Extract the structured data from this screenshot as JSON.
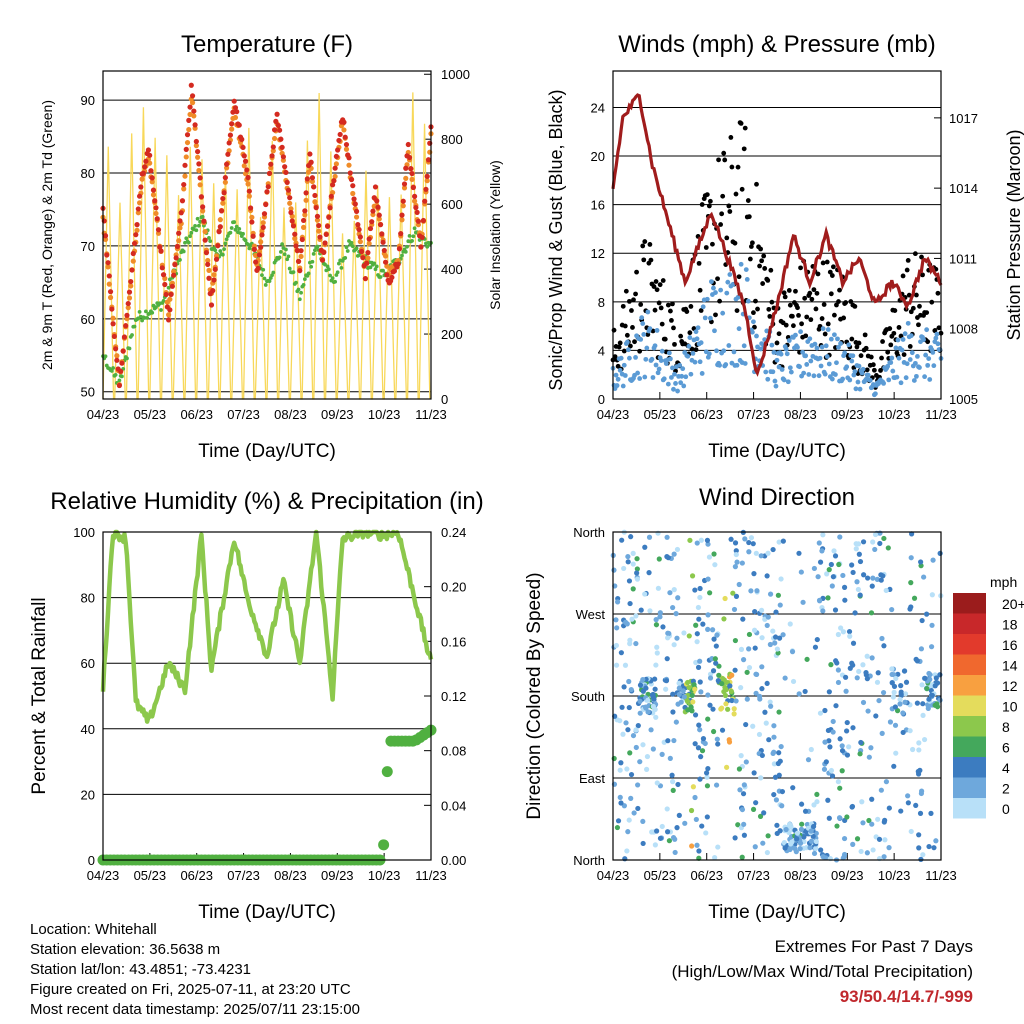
{
  "chart_data": [
    {
      "type": "line",
      "title": "Temperature (F)",
      "xlabel": "Time (Day/UTC)",
      "ylabel": "2m & 9m T (Red, Orange) & 2m Td (Green)",
      "ylabel_right": "Solar Insolation (Yellow)",
      "x_ticks": [
        "04/23",
        "05/23",
        "06/23",
        "07/23",
        "08/23",
        "09/23",
        "10/23",
        "11/23"
      ],
      "y_ticks": [
        "50",
        "60",
        "70",
        "80",
        "90"
      ],
      "y_right_ticks": [
        "0",
        "200",
        "400",
        "600",
        "800",
        "1000"
      ],
      "ylim": [
        49,
        94
      ],
      "ylim_right": [
        0,
        1010
      ],
      "grid": "horizontal",
      "series": [
        {
          "role": "2m T",
          "color": "#d42a20",
          "x": [
            0,
            0.03,
            0.05,
            0.12,
            0.14,
            0.2,
            0.24,
            0.27,
            0.33,
            0.4,
            0.44,
            0.47,
            0.53,
            0.6,
            0.63,
            0.67,
            0.73,
            0.8,
            0.83,
            0.87,
            0.9,
            0.93,
            0.97,
            1
          ],
          "values": [
            75,
            60,
            51,
            80,
            83,
            60,
            75,
            92,
            62,
            90,
            80,
            66,
            88,
            67,
            83,
            68,
            88,
            66,
            78,
            65,
            68,
            84,
            70,
            86
          ]
        },
        {
          "role": "9m T",
          "color": "#f08c28",
          "x": [
            0,
            0.03,
            0.05,
            0.12,
            0.14,
            0.2,
            0.24,
            0.27,
            0.33,
            0.4,
            0.44,
            0.47,
            0.53,
            0.6,
            0.63,
            0.67,
            0.73,
            0.8,
            0.83,
            0.87,
            0.9,
            0.93,
            0.97,
            1
          ],
          "values": [
            74,
            60,
            51,
            79,
            82,
            61,
            74,
            91,
            63,
            89,
            79,
            67,
            87,
            67,
            82,
            68,
            87,
            66,
            77,
            66,
            68,
            83,
            70,
            85
          ]
        },
        {
          "role": "2m Td",
          "color": "#50b040",
          "x": [
            0,
            0.05,
            0.1,
            0.18,
            0.25,
            0.3,
            0.35,
            0.4,
            0.45,
            0.5,
            0.55,
            0.6,
            0.65,
            0.7,
            0.75,
            0.8,
            0.85,
            0.9,
            0.95,
            1
          ],
          "values": [
            55,
            51,
            60,
            62,
            70,
            74,
            68,
            73,
            70,
            65,
            70,
            63,
            70,
            65,
            70,
            68,
            66,
            68,
            72,
            70
          ]
        },
        {
          "role": "Solar Insolation",
          "color": "#f8d85a",
          "axis": "right",
          "peak_values": [
            920,
            880,
            980,
            900,
            940,
            880,
            1000,
            820,
            850,
            720,
            800,
            920
          ]
        }
      ]
    },
    {
      "type": "scatter",
      "title": "Winds (mph) & Pressure (mb)",
      "xlabel": "Time (Day/UTC)",
      "ylabel": "Sonic/Prop Wind & Gust (Blue, Black)",
      "ylabel_right": "Station Pressure (Maroon)",
      "x_ticks": [
        "04/23",
        "05/23",
        "06/23",
        "07/23",
        "08/23",
        "09/23",
        "10/23",
        "11/23"
      ],
      "y_ticks": [
        "0",
        "4",
        "8",
        "12",
        "16",
        "20",
        "24"
      ],
      "y_right_ticks": [
        "1005",
        "1008",
        "1011",
        "1014",
        "1017"
      ],
      "ylim": [
        0,
        27
      ],
      "ylim_right": [
        1005,
        1019
      ],
      "grid": "horizontal",
      "series": [
        {
          "role": "Wind",
          "color": "#5b9bd5",
          "x": [
            0,
            0.1,
            0.2,
            0.3,
            0.4,
            0.5,
            0.6,
            0.7,
            0.8,
            0.9,
            1
          ],
          "values": [
            2,
            6,
            2,
            8,
            9,
            3,
            5,
            4,
            1,
            5,
            4
          ]
        },
        {
          "role": "Gust",
          "color": "#000000",
          "x": [
            0,
            0.1,
            0.2,
            0.3,
            0.4,
            0.5,
            0.6,
            0.7,
            0.8,
            0.9,
            1
          ],
          "values": [
            4,
            10,
            5,
            14,
            17,
            6,
            9,
            8,
            2,
            9,
            8
          ]
        },
        {
          "role": "Station Pressure",
          "color": "#a01c1c",
          "axis": "right",
          "x": [
            0,
            0.03,
            0.08,
            0.12,
            0.18,
            0.22,
            0.3,
            0.35,
            0.4,
            0.44,
            0.5,
            0.55,
            0.6,
            0.65,
            0.7,
            0.75,
            0.8,
            0.85,
            0.9,
            0.95,
            1
          ],
          "values": [
            1014,
            1017,
            1018,
            1015,
            1012,
            1010,
            1013,
            1011,
            1009,
            1006,
            1009,
            1012,
            1010,
            1012,
            1010,
            1011,
            1009,
            1010,
            1009,
            1011,
            1010
          ]
        }
      ]
    },
    {
      "type": "line",
      "title": "Relative Humidity (%) & Precipitation (in)",
      "xlabel": "Time (Day/UTC)",
      "ylabel": "Percent & Total Rainfall",
      "x_ticks": [
        "04/23",
        "05/23",
        "06/23",
        "07/23",
        "08/23",
        "09/23",
        "10/23",
        "11/23"
      ],
      "y_ticks": [
        "0",
        "20",
        "40",
        "60",
        "80",
        "100"
      ],
      "y_right_ticks": [
        "0.00",
        "0.04",
        "0.08",
        "0.12",
        "0.16",
        "0.20",
        "0.24"
      ],
      "ylim": [
        0,
        100
      ],
      "ylim_right": [
        0,
        0.24
      ],
      "grid": "horizontal",
      "series": [
        {
          "role": "Relative Humidity",
          "color": "#8cc84c",
          "x": [
            0,
            0.03,
            0.07,
            0.1,
            0.14,
            0.2,
            0.25,
            0.3,
            0.33,
            0.4,
            0.44,
            0.5,
            0.55,
            0.6,
            0.65,
            0.7,
            0.73,
            0.8,
            0.85,
            0.9,
            0.95,
            1
          ],
          "values": [
            52,
            100,
            98,
            48,
            42,
            60,
            52,
            99,
            58,
            98,
            80,
            62,
            85,
            60,
            100,
            50,
            98,
            100,
            99,
            100,
            80,
            60
          ]
        },
        {
          "role": "Total Precipitation",
          "color": "#50b040",
          "axis": "right",
          "x": [
            0,
            0.85,
            0.86,
            0.87,
            0.95,
            1
          ],
          "values": [
            0,
            0,
            0.02,
            0.087,
            0.087,
            0.095
          ]
        }
      ]
    },
    {
      "type": "scatter",
      "title": "Wind Direction",
      "xlabel": "Time (Day/UTC)",
      "ylabel": "Direction (Colored By Speed)",
      "x_ticks": [
        "04/23",
        "05/23",
        "06/23",
        "07/23",
        "08/23",
        "09/23",
        "10/23",
        "11/23"
      ],
      "y_ticks": [
        "North",
        "East",
        "South",
        "West",
        "North"
      ],
      "ylim": [
        0,
        360
      ],
      "grid": "horizontal",
      "legend": {
        "title": "mph",
        "labels": [
          "20+",
          "18",
          "16",
          "14",
          "12",
          "10",
          "8",
          "6",
          "4",
          "2",
          "0"
        ],
        "colors": [
          "#9b1c1c",
          "#c8282a",
          "#e23a2c",
          "#f0682e",
          "#f8a040",
          "#e4dc5c",
          "#8cc84c",
          "#44a85c",
          "#3c7cc0",
          "#6ea8dc",
          "#b8e0f8"
        ],
        "placement": "right"
      }
    }
  ],
  "info": {
    "location": "Location: Whitehall",
    "elevation": "Station elevation: 36.5638 m",
    "latlon": "Station lat/lon: 43.4851; -73.4231",
    "created": "Figure created on Fri, 2025-07-11, at 23:20 UTC",
    "recent": "Most recent data timestamp: 2025/07/11 23:15:00"
  },
  "extremes": {
    "title": "Extremes For Past 7 Days",
    "subtitle": "(High/Low/Max Wind/Total Precipitation)",
    "value": "93/50.4/14.7/-999"
  }
}
